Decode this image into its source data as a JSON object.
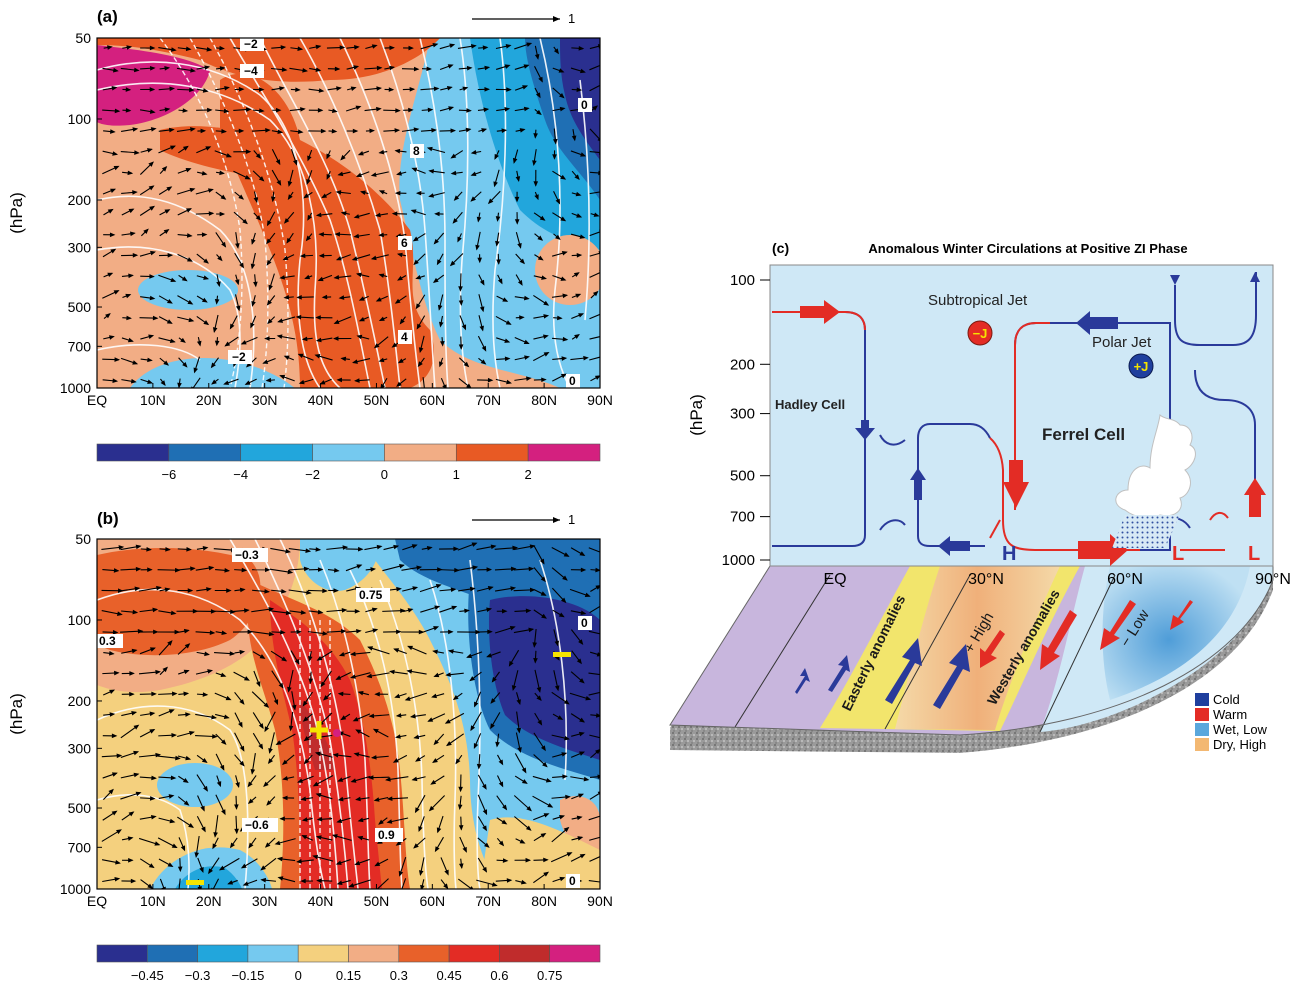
{
  "chart_data": [
    {
      "panel": "(a)",
      "type": "heatmap",
      "ylabel": "(hPa)",
      "x_ticks": [
        "EQ",
        "10N",
        "20N",
        "30N",
        "40N",
        "50N",
        "60N",
        "70N",
        "80N",
        "90N"
      ],
      "y_ticks": [
        "50",
        "100",
        "200",
        "300",
        "500",
        "700",
        "1000"
      ],
      "vector_reference": "1",
      "colorbar_ticks": [
        "−6",
        "−4",
        "−2",
        "0",
        "1",
        "2"
      ],
      "colorbar_colors": [
        "#2a2f8f",
        "#1f6fb4",
        "#22a6dc",
        "#75c9ef",
        "#f2ad85",
        "#e85a24",
        "#d4207f"
      ],
      "contour_labels": [
        "−2",
        "−4",
        "0",
        "8",
        "6",
        "4",
        "−2",
        "0"
      ]
    },
    {
      "panel": "(b)",
      "type": "heatmap",
      "ylabel": "(hPa)",
      "x_ticks": [
        "EQ",
        "10N",
        "20N",
        "30N",
        "40N",
        "50N",
        "60N",
        "70N",
        "80N",
        "90N"
      ],
      "y_ticks": [
        "50",
        "100",
        "200",
        "300",
        "500",
        "700",
        "1000"
      ],
      "vector_reference": "1",
      "colorbar_ticks": [
        "−0.45",
        "−0.3",
        "−0.15",
        "0",
        "0.15",
        "0.3",
        "0.45",
        "0.6",
        "0.75"
      ],
      "colorbar_colors": [
        "#2a2f8f",
        "#1f6fb4",
        "#22a6dc",
        "#75c9ef",
        "#f4d07e",
        "#f2ad85",
        "#e8612a",
        "#e32c25",
        "#c02c2c",
        "#d4207f"
      ],
      "contour_labels": [
        "−0.3",
        "0.75",
        "0",
        "0.3",
        "−0.6",
        "0.9",
        "0"
      ]
    },
    {
      "panel": "(c)",
      "type": "diagram",
      "title": "Anomalous Winter Circulations at Positive ZI Phase",
      "ylabel": "(hPa)",
      "y_ticks": [
        "100",
        "200",
        "300",
        "500",
        "700",
        "1000"
      ],
      "x_ticks": [
        "EQ",
        "30°N",
        "60°N",
        "90°N"
      ],
      "labels": {
        "subtropical_jet": "Subtropical Jet",
        "polar_jet": "Polar Jet",
        "minus_j": "−J",
        "plus_j": "+J",
        "hadley": "Hadley Cell",
        "ferrel": "Ferrel Cell",
        "high_h": "H",
        "low_l1": "L",
        "low_l2": "L",
        "easterly": "Easterly anomalies",
        "westerly": "Westerly anomalies",
        "plus_high": "+ High",
        "minus_low": "− Low"
      },
      "legend": [
        {
          "label": "Cold",
          "color": "#1f3f9e"
        },
        {
          "label": "Warm",
          "color": "#e32c25"
        },
        {
          "label": "Wet, Low",
          "color": "#5aa7dc"
        },
        {
          "label": "Dry, High",
          "color": "#f3b872"
        }
      ]
    }
  ]
}
